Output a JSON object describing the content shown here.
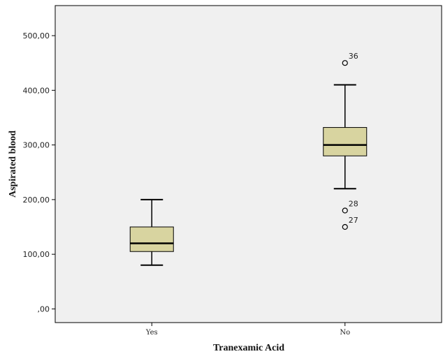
{
  "chart_data": {
    "type": "boxplot",
    "xlabel": "Tranexamic Acid",
    "ylabel": "Aspirated blood",
    "ylim": [
      -25,
      555
    ],
    "yticks": [
      0,
      100,
      200,
      300,
      400,
      500
    ],
    "ytick_labels": [
      ",00",
      "100,00",
      "200,00",
      "300,00",
      "400,00",
      "500,00"
    ],
    "grid": false,
    "colors": {
      "plot_bg": "#f0f0f0",
      "box_fill": "#d8d4a0",
      "stroke": "#000000"
    },
    "groups": [
      {
        "category": "Yes",
        "whisker_low": 80,
        "q1": 105,
        "median": 120,
        "q3": 150,
        "whisker_high": 200,
        "outliers": []
      },
      {
        "category": "No",
        "whisker_low": 220,
        "q1": 280,
        "median": 300,
        "q3": 332,
        "whisker_high": 410,
        "outliers": [
          {
            "value": 450,
            "label": "36"
          },
          {
            "value": 180,
            "label": "28"
          },
          {
            "value": 150,
            "label": "27"
          }
        ]
      }
    ]
  }
}
